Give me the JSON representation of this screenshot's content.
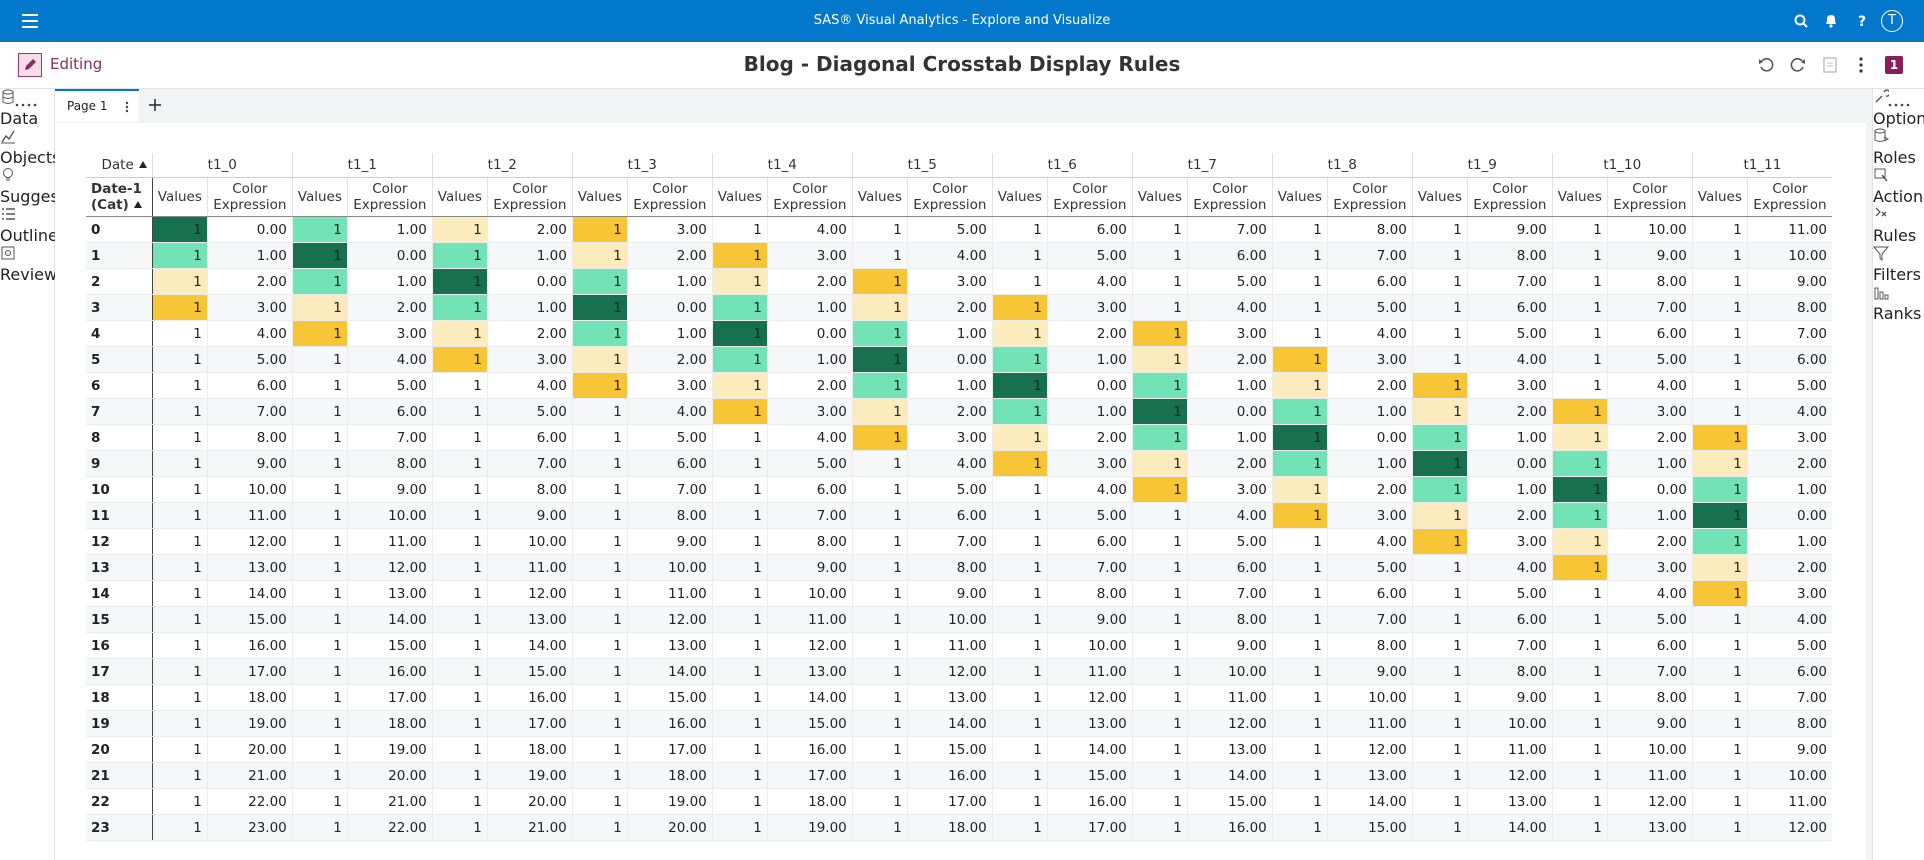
{
  "app_bar": {
    "title": "SAS® Visual Analytics - Explore and Visualize",
    "user_initial": "T"
  },
  "toolbar": {
    "mode": "Editing",
    "title": "Blog - Diagonal Crosstab Display Rules",
    "badge": "1"
  },
  "left_nav": [
    "Data",
    "Objects",
    "Suggest",
    "Outline",
    "Review"
  ],
  "right_nav": [
    "Options",
    "Roles",
    "Actions",
    "Rules",
    "Filters",
    "Ranks"
  ],
  "tabs": [
    "Page 1"
  ],
  "crosstab": {
    "column_header": "Date",
    "row_header": "Date-1 (Cat)",
    "measures": [
      "Values",
      "Color Expression"
    ],
    "columns": [
      "t1_0",
      "t1_1",
      "t1_2",
      "t1_3",
      "t1_4",
      "t1_5",
      "t1_6",
      "t1_7",
      "t1_8",
      "t1_9",
      "t1_10",
      "t1_11"
    ],
    "rule_colors": [
      "#17704f",
      "#72e3b7",
      "#fcecbd",
      "#f8c536"
    ],
    "rows": [
      [
        "0",
        "1",
        "0.00",
        "1",
        "1.00",
        "1",
        "2.00",
        "1",
        "3.00",
        "1",
        "4.00",
        "1",
        "5.00",
        "1",
        "6.00",
        "1",
        "7.00",
        "1",
        "8.00",
        "1",
        "9.00",
        "1",
        "10.00",
        "1",
        "11.00"
      ],
      [
        "1",
        "1",
        "1.00",
        "1",
        "0.00",
        "1",
        "1.00",
        "1",
        "2.00",
        "1",
        "3.00",
        "1",
        "4.00",
        "1",
        "5.00",
        "1",
        "6.00",
        "1",
        "7.00",
        "1",
        "8.00",
        "1",
        "9.00",
        "1",
        "10.00"
      ],
      [
        "2",
        "1",
        "2.00",
        "1",
        "1.00",
        "1",
        "0.00",
        "1",
        "1.00",
        "1",
        "2.00",
        "1",
        "3.00",
        "1",
        "4.00",
        "1",
        "5.00",
        "1",
        "6.00",
        "1",
        "7.00",
        "1",
        "8.00",
        "1",
        "9.00"
      ],
      [
        "3",
        "1",
        "3.00",
        "1",
        "2.00",
        "1",
        "1.00",
        "1",
        "0.00",
        "1",
        "1.00",
        "1",
        "2.00",
        "1",
        "3.00",
        "1",
        "4.00",
        "1",
        "5.00",
        "1",
        "6.00",
        "1",
        "7.00",
        "1",
        "8.00"
      ],
      [
        "4",
        "1",
        "4.00",
        "1",
        "3.00",
        "1",
        "2.00",
        "1",
        "1.00",
        "1",
        "0.00",
        "1",
        "1.00",
        "1",
        "2.00",
        "1",
        "3.00",
        "1",
        "4.00",
        "1",
        "5.00",
        "1",
        "6.00",
        "1",
        "7.00"
      ],
      [
        "5",
        "1",
        "5.00",
        "1",
        "4.00",
        "1",
        "3.00",
        "1",
        "2.00",
        "1",
        "1.00",
        "1",
        "0.00",
        "1",
        "1.00",
        "1",
        "2.00",
        "1",
        "3.00",
        "1",
        "4.00",
        "1",
        "5.00",
        "1",
        "6.00"
      ],
      [
        "6",
        "1",
        "6.00",
        "1",
        "5.00",
        "1",
        "4.00",
        "1",
        "3.00",
        "1",
        "2.00",
        "1",
        "1.00",
        "1",
        "0.00",
        "1",
        "1.00",
        "1",
        "2.00",
        "1",
        "3.00",
        "1",
        "4.00",
        "1",
        "5.00"
      ],
      [
        "7",
        "1",
        "7.00",
        "1",
        "6.00",
        "1",
        "5.00",
        "1",
        "4.00",
        "1",
        "3.00",
        "1",
        "2.00",
        "1",
        "1.00",
        "1",
        "0.00",
        "1",
        "1.00",
        "1",
        "2.00",
        "1",
        "3.00",
        "1",
        "4.00"
      ],
      [
        "8",
        "1",
        "8.00",
        "1",
        "7.00",
        "1",
        "6.00",
        "1",
        "5.00",
        "1",
        "4.00",
        "1",
        "3.00",
        "1",
        "2.00",
        "1",
        "1.00",
        "1",
        "0.00",
        "1",
        "1.00",
        "1",
        "2.00",
        "1",
        "3.00"
      ],
      [
        "9",
        "1",
        "9.00",
        "1",
        "8.00",
        "1",
        "7.00",
        "1",
        "6.00",
        "1",
        "5.00",
        "1",
        "4.00",
        "1",
        "3.00",
        "1",
        "2.00",
        "1",
        "1.00",
        "1",
        "0.00",
        "1",
        "1.00",
        "1",
        "2.00"
      ],
      [
        "10",
        "1",
        "10.00",
        "1",
        "9.00",
        "1",
        "8.00",
        "1",
        "7.00",
        "1",
        "6.00",
        "1",
        "5.00",
        "1",
        "4.00",
        "1",
        "3.00",
        "1",
        "2.00",
        "1",
        "1.00",
        "1",
        "0.00",
        "1",
        "1.00"
      ],
      [
        "11",
        "1",
        "11.00",
        "1",
        "10.00",
        "1",
        "9.00",
        "1",
        "8.00",
        "1",
        "7.00",
        "1",
        "6.00",
        "1",
        "5.00",
        "1",
        "4.00",
        "1",
        "3.00",
        "1",
        "2.00",
        "1",
        "1.00",
        "1",
        "0.00"
      ],
      [
        "12",
        "1",
        "12.00",
        "1",
        "11.00",
        "1",
        "10.00",
        "1",
        "9.00",
        "1",
        "8.00",
        "1",
        "7.00",
        "1",
        "6.00",
        "1",
        "5.00",
        "1",
        "4.00",
        "1",
        "3.00",
        "1",
        "2.00",
        "1",
        "1.00"
      ],
      [
        "13",
        "1",
        "13.00",
        "1",
        "12.00",
        "1",
        "11.00",
        "1",
        "10.00",
        "1",
        "9.00",
        "1",
        "8.00",
        "1",
        "7.00",
        "1",
        "6.00",
        "1",
        "5.00",
        "1",
        "4.00",
        "1",
        "3.00",
        "1",
        "2.00"
      ],
      [
        "14",
        "1",
        "14.00",
        "1",
        "13.00",
        "1",
        "12.00",
        "1",
        "11.00",
        "1",
        "10.00",
        "1",
        "9.00",
        "1",
        "8.00",
        "1",
        "7.00",
        "1",
        "6.00",
        "1",
        "5.00",
        "1",
        "4.00",
        "1",
        "3.00"
      ],
      [
        "15",
        "1",
        "15.00",
        "1",
        "14.00",
        "1",
        "13.00",
        "1",
        "12.00",
        "1",
        "11.00",
        "1",
        "10.00",
        "1",
        "9.00",
        "1",
        "8.00",
        "1",
        "7.00",
        "1",
        "6.00",
        "1",
        "5.00",
        "1",
        "4.00"
      ],
      [
        "16",
        "1",
        "16.00",
        "1",
        "15.00",
        "1",
        "14.00",
        "1",
        "13.00",
        "1",
        "12.00",
        "1",
        "11.00",
        "1",
        "10.00",
        "1",
        "9.00",
        "1",
        "8.00",
        "1",
        "7.00",
        "1",
        "6.00",
        "1",
        "5.00"
      ],
      [
        "17",
        "1",
        "17.00",
        "1",
        "16.00",
        "1",
        "15.00",
        "1",
        "14.00",
        "1",
        "13.00",
        "1",
        "12.00",
        "1",
        "11.00",
        "1",
        "10.00",
        "1",
        "9.00",
        "1",
        "8.00",
        "1",
        "7.00",
        "1",
        "6.00"
      ],
      [
        "18",
        "1",
        "18.00",
        "1",
        "17.00",
        "1",
        "16.00",
        "1",
        "15.00",
        "1",
        "14.00",
        "1",
        "13.00",
        "1",
        "12.00",
        "1",
        "11.00",
        "1",
        "10.00",
        "1",
        "9.00",
        "1",
        "8.00",
        "1",
        "7.00"
      ],
      [
        "19",
        "1",
        "19.00",
        "1",
        "18.00",
        "1",
        "17.00",
        "1",
        "16.00",
        "1",
        "15.00",
        "1",
        "14.00",
        "1",
        "13.00",
        "1",
        "12.00",
        "1",
        "11.00",
        "1",
        "10.00",
        "1",
        "9.00",
        "1",
        "8.00"
      ],
      [
        "20",
        "1",
        "20.00",
        "1",
        "19.00",
        "1",
        "18.00",
        "1",
        "17.00",
        "1",
        "16.00",
        "1",
        "15.00",
        "1",
        "14.00",
        "1",
        "13.00",
        "1",
        "12.00",
        "1",
        "11.00",
        "1",
        "10.00",
        "1",
        "9.00"
      ],
      [
        "21",
        "1",
        "21.00",
        "1",
        "20.00",
        "1",
        "19.00",
        "1",
        "18.00",
        "1",
        "17.00",
        "1",
        "16.00",
        "1",
        "15.00",
        "1",
        "14.00",
        "1",
        "13.00",
        "1",
        "12.00",
        "1",
        "11.00",
        "1",
        "10.00"
      ],
      [
        "22",
        "1",
        "22.00",
        "1",
        "21.00",
        "1",
        "20.00",
        "1",
        "19.00",
        "1",
        "18.00",
        "1",
        "17.00",
        "1",
        "16.00",
        "1",
        "15.00",
        "1",
        "14.00",
        "1",
        "13.00",
        "1",
        "12.00",
        "1",
        "11.00"
      ],
      [
        "23",
        "1",
        "23.00",
        "1",
        "22.00",
        "1",
        "21.00",
        "1",
        "20.00",
        "1",
        "19.00",
        "1",
        "18.00",
        "1",
        "17.00",
        "1",
        "16.00",
        "1",
        "15.00",
        "1",
        "14.00",
        "1",
        "13.00",
        "1",
        "12.00"
      ]
    ]
  }
}
